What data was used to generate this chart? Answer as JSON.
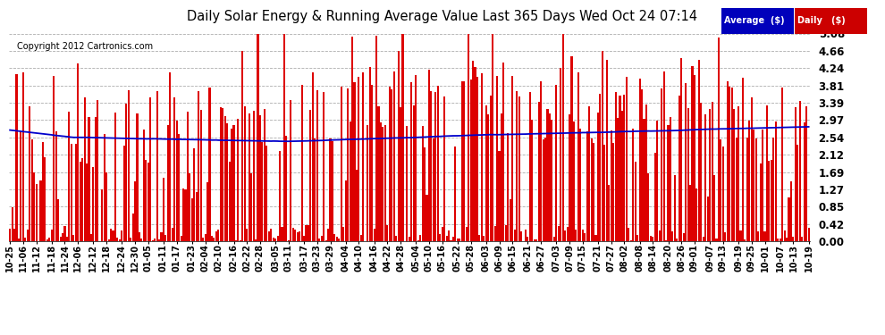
{
  "title": "Daily Solar Energy & Running Average Value Last 365 Days Wed Oct 24 07:14",
  "copyright": "Copyright 2012 Cartronics.com",
  "legend_labels": [
    "Average  ($)",
    "Daily   ($)"
  ],
  "bar_color": "#dd0000",
  "avg_color": "#0000cc",
  "bg_color": "#ffffff",
  "grid_color": "#999999",
  "ylim": [
    0.0,
    5.08
  ],
  "yticks": [
    0.0,
    0.42,
    0.85,
    1.27,
    1.69,
    2.12,
    2.54,
    2.97,
    3.39,
    3.81,
    4.24,
    4.66,
    5.08
  ],
  "x_labels": [
    "10-25",
    "11-06",
    "11-12",
    "11-18",
    "11-24",
    "12-06",
    "12-12",
    "12-18",
    "12-24",
    "12-30",
    "01-05",
    "01-11",
    "01-17",
    "01-23",
    "02-04",
    "02-10",
    "02-16",
    "02-22",
    "02-28",
    "03-05",
    "03-11",
    "03-17",
    "03-23",
    "03-29",
    "04-04",
    "04-10",
    "04-16",
    "04-22",
    "04-28",
    "05-04",
    "05-10",
    "05-16",
    "05-22",
    "05-28",
    "06-03",
    "06-09",
    "06-15",
    "06-21",
    "06-27",
    "07-03",
    "07-09",
    "07-15",
    "07-21",
    "07-27",
    "08-02",
    "08-08",
    "08-14",
    "08-20",
    "08-26",
    "09-01",
    "09-07",
    "09-13",
    "09-19",
    "09-25",
    "10-01",
    "10-07",
    "10-13",
    "10-19"
  ],
  "n_bars": 365,
  "seed": 42
}
